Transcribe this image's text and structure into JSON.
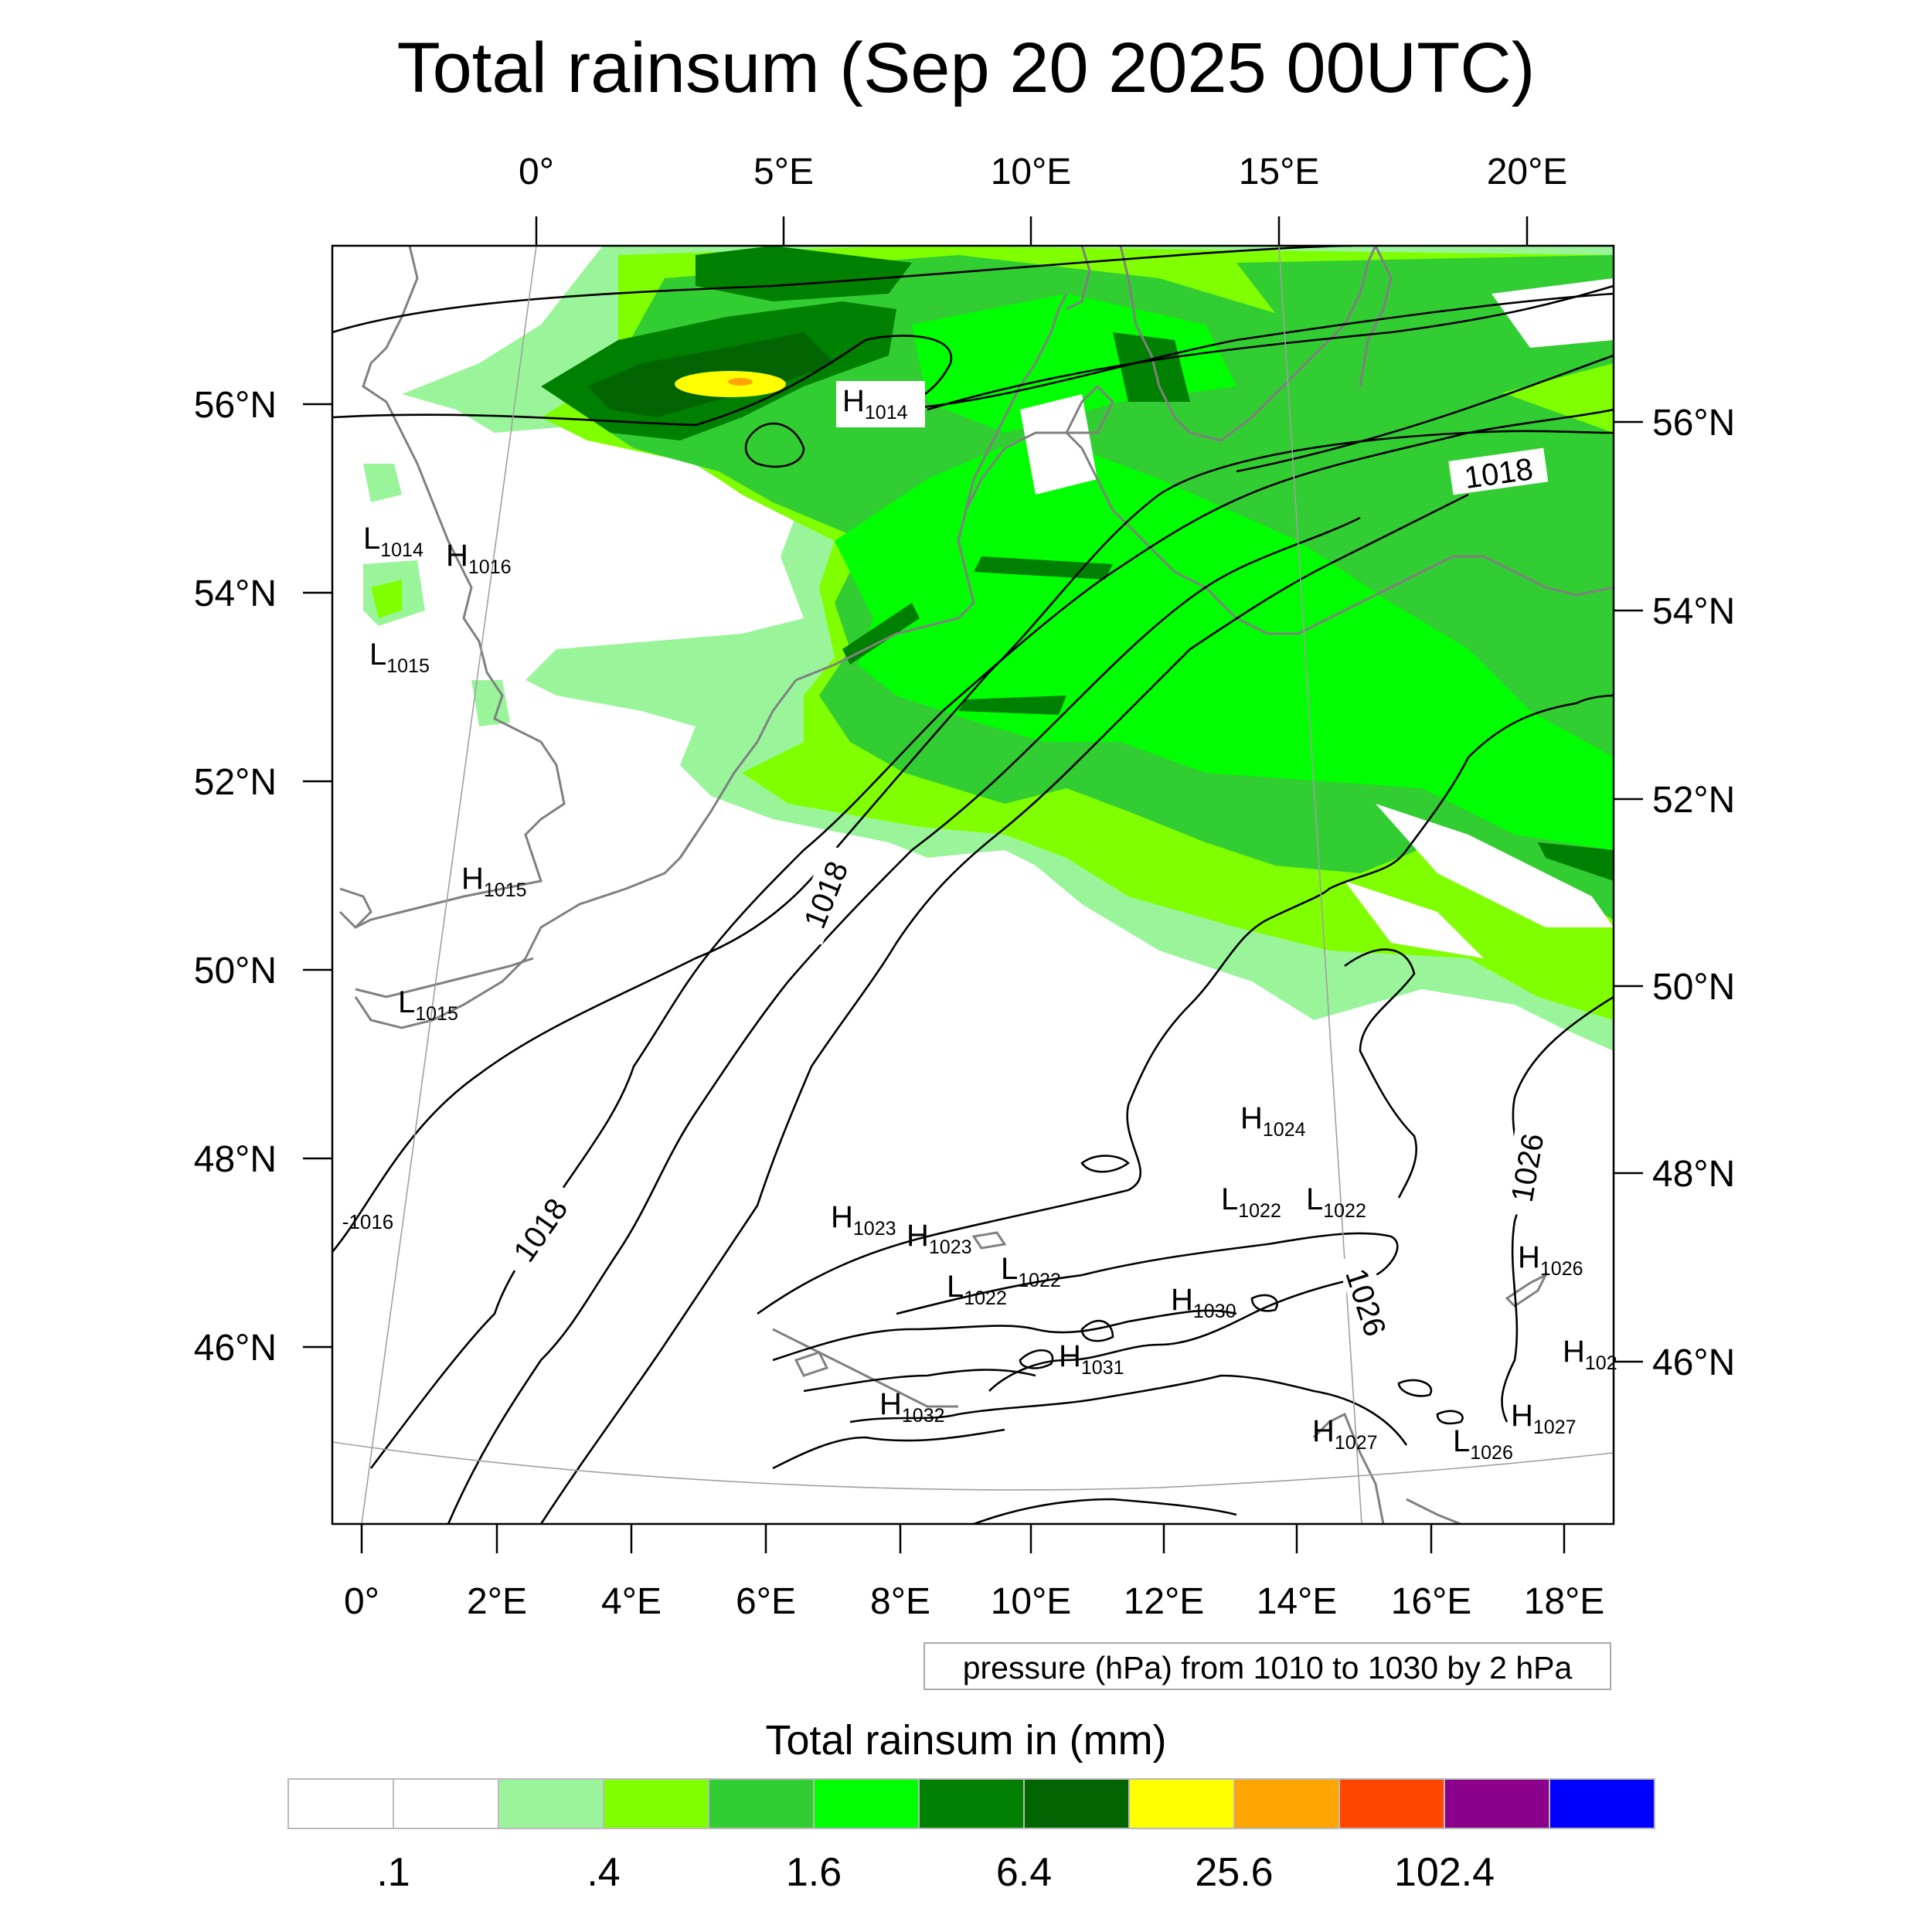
{
  "title": "Total rainsum (Sep 20 2025 00UTC)",
  "top_lon_labels": [
    "0°",
    "5°E",
    "10°E",
    "15°E",
    "20°E"
  ],
  "bottom_lon_labels": [
    "0°",
    "2°E",
    "4°E",
    "6°E",
    "8°E",
    "10°E",
    "12°E",
    "14°E",
    "16°E",
    "18°E"
  ],
  "left_lat_labels": [
    "56°N",
    "54°N",
    "52°N",
    "50°N",
    "48°N",
    "46°N"
  ],
  "right_lat_labels": [
    "56°N",
    "54°N",
    "52°N",
    "50°N",
    "48°N",
    "46°N"
  ],
  "contour_labels": [
    "1018",
    "1018",
    "1018",
    "1026",
    "1026",
    "-1016"
  ],
  "pressure_centers": [
    {
      "type": "H",
      "value": "1014"
    },
    {
      "type": "L",
      "value": "1014"
    },
    {
      "type": "H",
      "value": "1016"
    },
    {
      "type": "L",
      "value": "1015"
    },
    {
      "type": "H",
      "value": "1015"
    },
    {
      "type": "L",
      "value": "1015"
    },
    {
      "type": "H",
      "value": "1024"
    },
    {
      "type": "H",
      "value": "1023"
    },
    {
      "type": "H",
      "value": "1023"
    },
    {
      "type": "L",
      "value": "1022"
    },
    {
      "type": "L",
      "value": "1022"
    },
    {
      "type": "L",
      "value": "1022"
    },
    {
      "type": "L",
      "value": "1022"
    },
    {
      "type": "H",
      "value": "1030"
    },
    {
      "type": "H",
      "value": "1026"
    },
    {
      "type": "H",
      "value": "102"
    },
    {
      "type": "H",
      "value": "1031"
    },
    {
      "type": "H",
      "value": "1032"
    },
    {
      "type": "H",
      "value": "1027"
    },
    {
      "type": "L",
      "value": "1026"
    },
    {
      "type": "H",
      "value": "1027"
    }
  ],
  "contour_note": "pressure (hPa) from 1010 to 1030 by 2 hPa",
  "colorbar": {
    "title": "Total rainsum in (mm)",
    "colors": [
      "#ffffff",
      "#ffffff",
      "#9af59a",
      "#80ff00",
      "#32cd32",
      "#00ff00",
      "#008000",
      "#006400",
      "#ffff00",
      "#ffa500",
      "#ff4500",
      "#8b008b",
      "#0000ff"
    ],
    "tick_labels": [
      ".1",
      ".4",
      "1.6",
      "6.4",
      "25.6",
      "102.4"
    ]
  },
  "colors": {
    "coastline": "#808080",
    "isobar": "#000000",
    "grid": "#a0a0a0"
  }
}
